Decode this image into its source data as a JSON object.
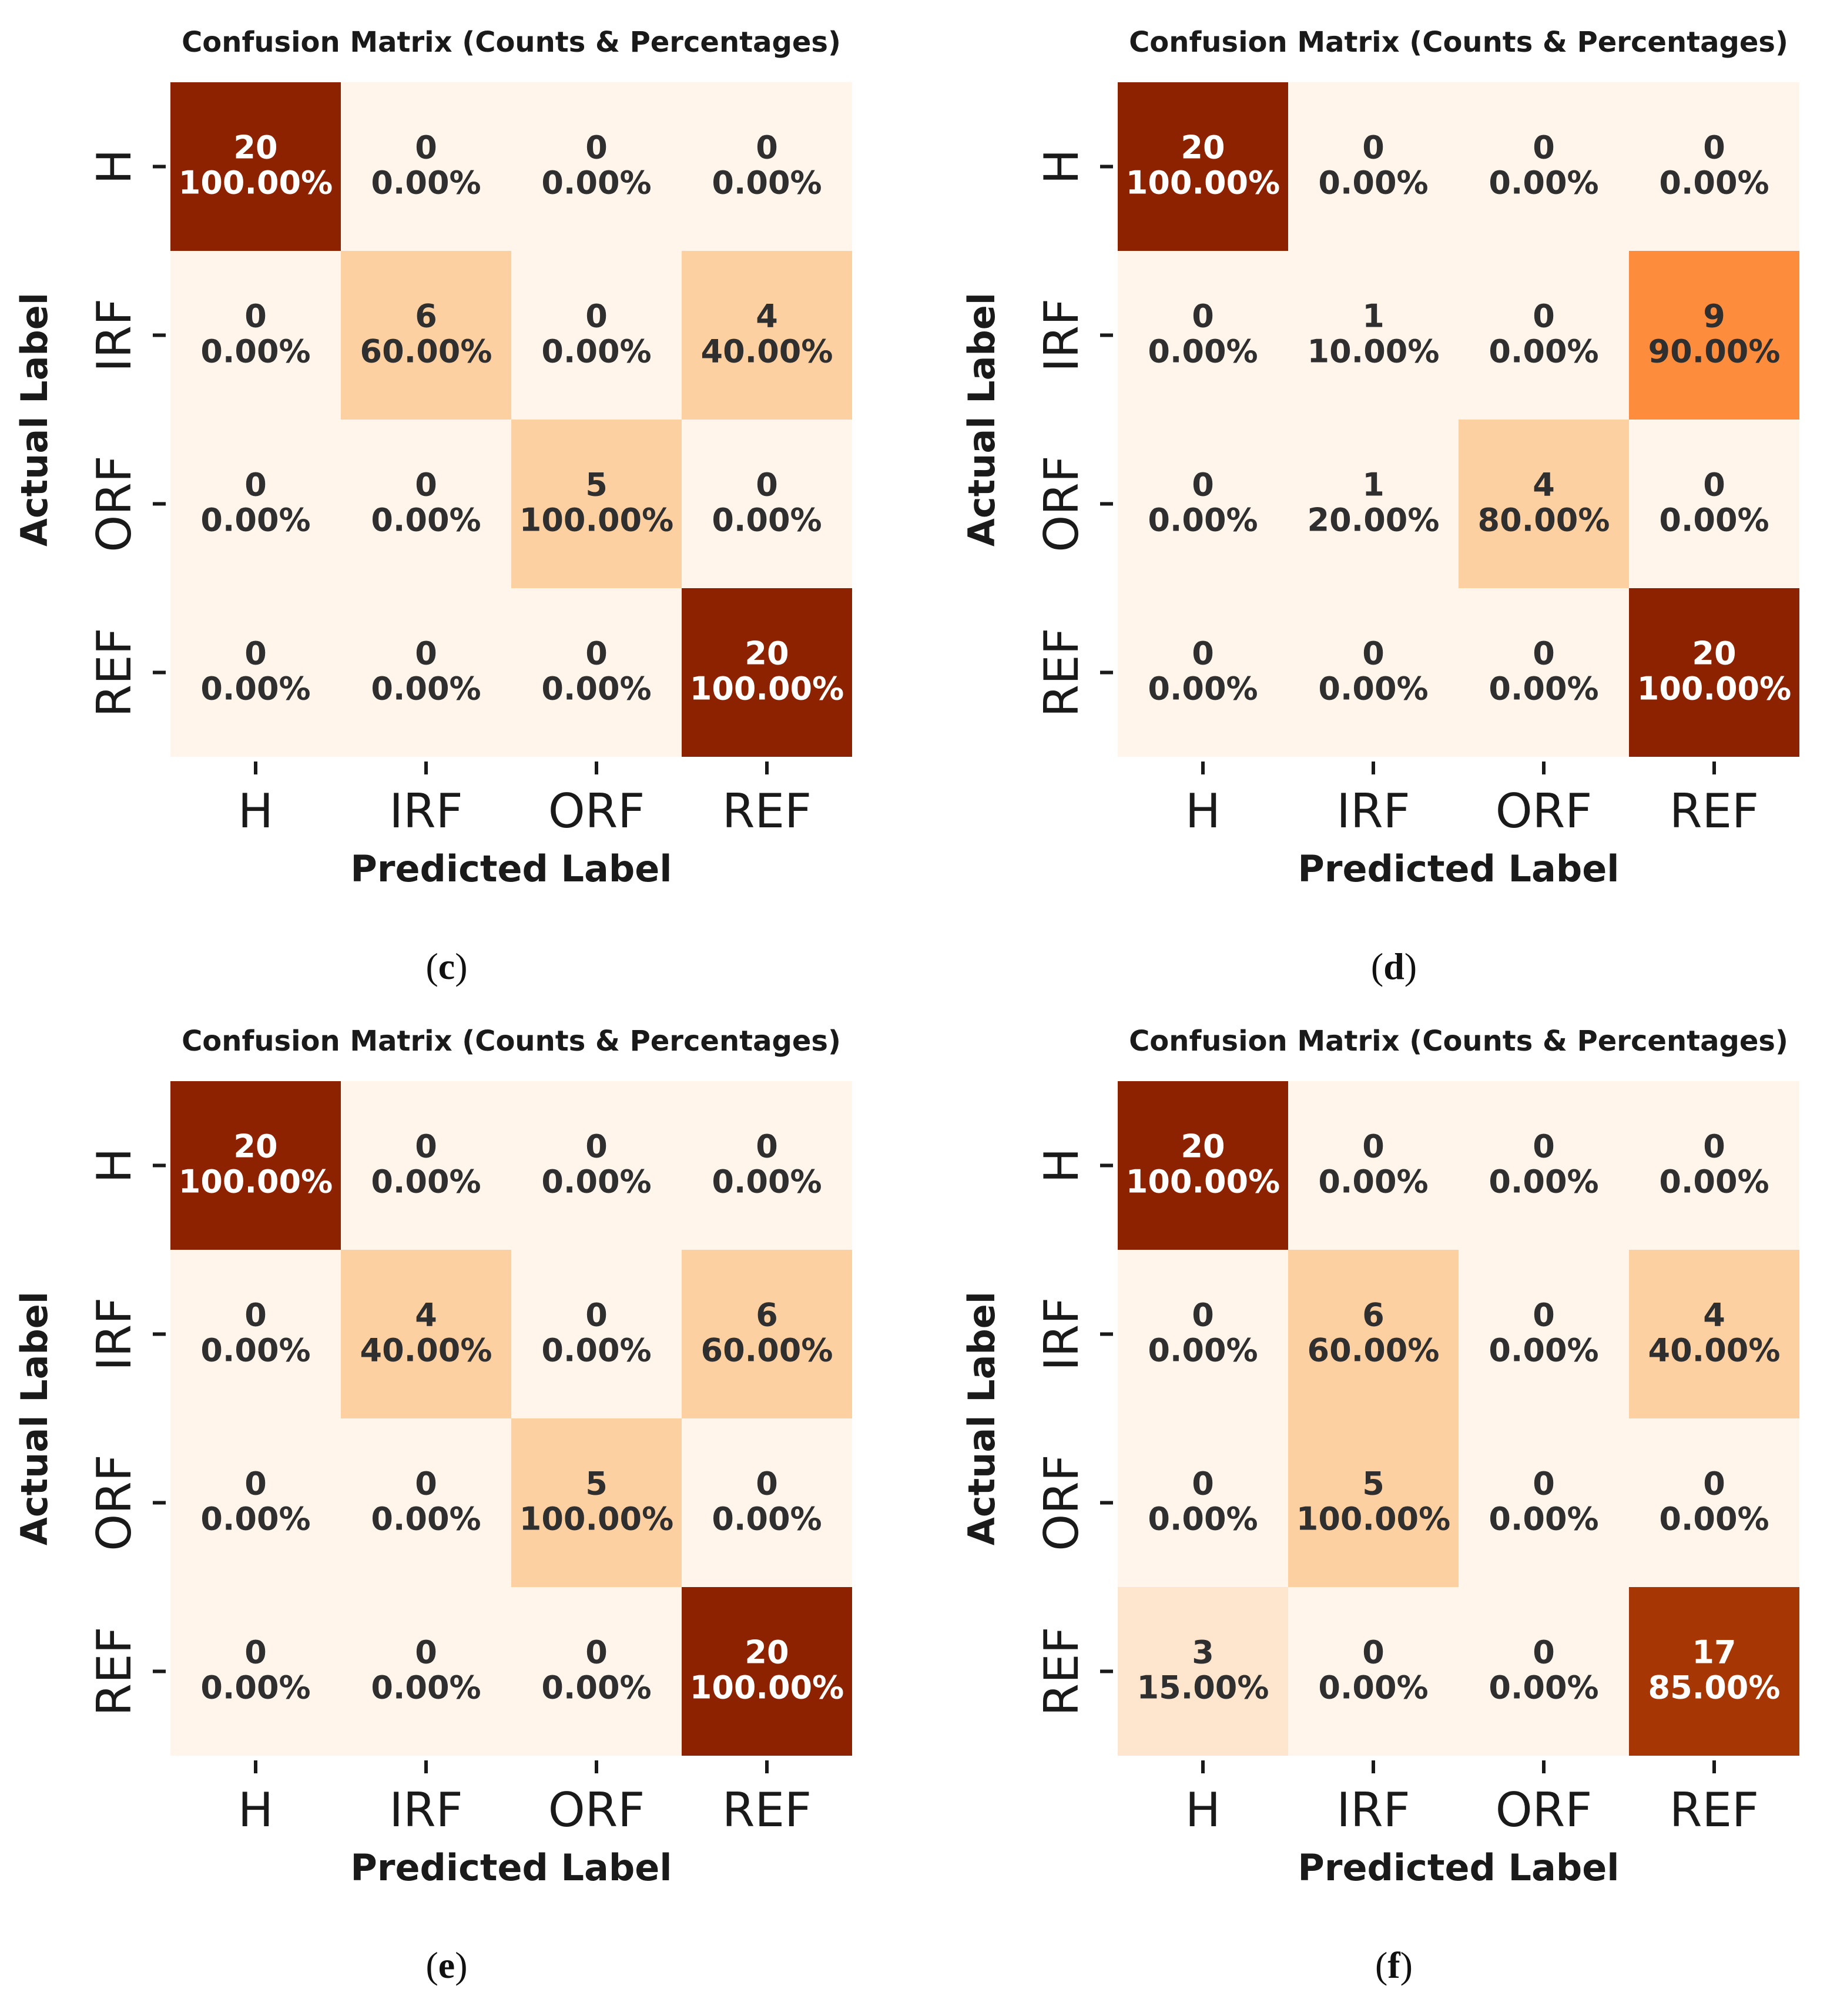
{
  "colors": {
    "scale": [
      "#fff5eb",
      "#fee6ce",
      "#fdd0a2",
      "#fdae6b",
      "#fd8d3c",
      "#f16913",
      "#d94801",
      "#a63603",
      "#8d2200"
    ],
    "light_text": "#ffffff",
    "dark_text": "#2f2f2f"
  },
  "chart_data": [
    {
      "type": "heatmap",
      "panel": "c",
      "caption": "(c)",
      "caption_parts": [
        "(",
        "c",
        ")"
      ],
      "title": "Confusion Matrix (Counts & Percentages)",
      "xlabel": "Predicted Label",
      "ylabel": "Actual Label",
      "x_ticks": [
        "H",
        "IRF",
        "ORF",
        "REF"
      ],
      "y_ticks": [
        "H",
        "IRF",
        "ORF",
        "REF"
      ],
      "counts": [
        [
          20,
          0,
          0,
          0
        ],
        [
          0,
          6,
          0,
          4
        ],
        [
          0,
          0,
          5,
          0
        ],
        [
          0,
          0,
          0,
          20
        ]
      ],
      "percentages": [
        [
          "100.00%",
          "0.00%",
          "0.00%",
          "0.00%"
        ],
        [
          "0.00%",
          "60.00%",
          "0.00%",
          "40.00%"
        ],
        [
          "0.00%",
          "0.00%",
          "100.00%",
          "0.00%"
        ],
        [
          "0.00%",
          "0.00%",
          "0.00%",
          "100.00%"
        ]
      ]
    },
    {
      "type": "heatmap",
      "panel": "d",
      "caption": "(d)",
      "caption_parts": [
        "(",
        "d",
        ")"
      ],
      "title": "Confusion Matrix (Counts & Percentages)",
      "xlabel": "Predicted Label",
      "ylabel": "Actual Label",
      "x_ticks": [
        "H",
        "IRF",
        "ORF",
        "REF"
      ],
      "y_ticks": [
        "H",
        "IRF",
        "ORF",
        "REF"
      ],
      "counts": [
        [
          20,
          0,
          0,
          0
        ],
        [
          0,
          1,
          0,
          9
        ],
        [
          0,
          1,
          4,
          0
        ],
        [
          0,
          0,
          0,
          20
        ]
      ],
      "percentages": [
        [
          "100.00%",
          "0.00%",
          "0.00%",
          "0.00%"
        ],
        [
          "0.00%",
          "10.00%",
          "0.00%",
          "90.00%"
        ],
        [
          "0.00%",
          "20.00%",
          "80.00%",
          "0.00%"
        ],
        [
          "0.00%",
          "0.00%",
          "0.00%",
          "100.00%"
        ]
      ]
    },
    {
      "type": "heatmap",
      "panel": "e",
      "caption": "(e)",
      "caption_parts": [
        "(",
        "e",
        ")"
      ],
      "title": "Confusion Matrix (Counts & Percentages)",
      "xlabel": "Predicted Label",
      "ylabel": "Actual Label",
      "x_ticks": [
        "H",
        "IRF",
        "ORF",
        "REF"
      ],
      "y_ticks": [
        "H",
        "IRF",
        "ORF",
        "REF"
      ],
      "counts": [
        [
          20,
          0,
          0,
          0
        ],
        [
          0,
          4,
          0,
          6
        ],
        [
          0,
          0,
          5,
          0
        ],
        [
          0,
          0,
          0,
          20
        ]
      ],
      "percentages": [
        [
          "100.00%",
          "0.00%",
          "0.00%",
          "0.00%"
        ],
        [
          "0.00%",
          "40.00%",
          "0.00%",
          "60.00%"
        ],
        [
          "0.00%",
          "0.00%",
          "100.00%",
          "0.00%"
        ],
        [
          "0.00%",
          "0.00%",
          "0.00%",
          "100.00%"
        ]
      ]
    },
    {
      "type": "heatmap",
      "panel": "f",
      "caption": "(f)",
      "caption_parts": [
        "(",
        "f",
        ")"
      ],
      "title": "Confusion Matrix (Counts & Percentages)",
      "xlabel": "Predicted Label",
      "ylabel": "Actual Label",
      "x_ticks": [
        "H",
        "IRF",
        "ORF",
        "REF"
      ],
      "y_ticks": [
        "H",
        "IRF",
        "ORF",
        "REF"
      ],
      "counts": [
        [
          20,
          0,
          0,
          0
        ],
        [
          0,
          6,
          0,
          4
        ],
        [
          0,
          5,
          0,
          0
        ],
        [
          3,
          0,
          0,
          17
        ]
      ],
      "percentages": [
        [
          "100.00%",
          "0.00%",
          "0.00%",
          "0.00%"
        ],
        [
          "0.00%",
          "60.00%",
          "0.00%",
          "40.00%"
        ],
        [
          "0.00%",
          "100.00%",
          "0.00%",
          "0.00%"
        ],
        [
          "15.00%",
          "0.00%",
          "0.00%",
          "85.00%"
        ]
      ]
    }
  ]
}
